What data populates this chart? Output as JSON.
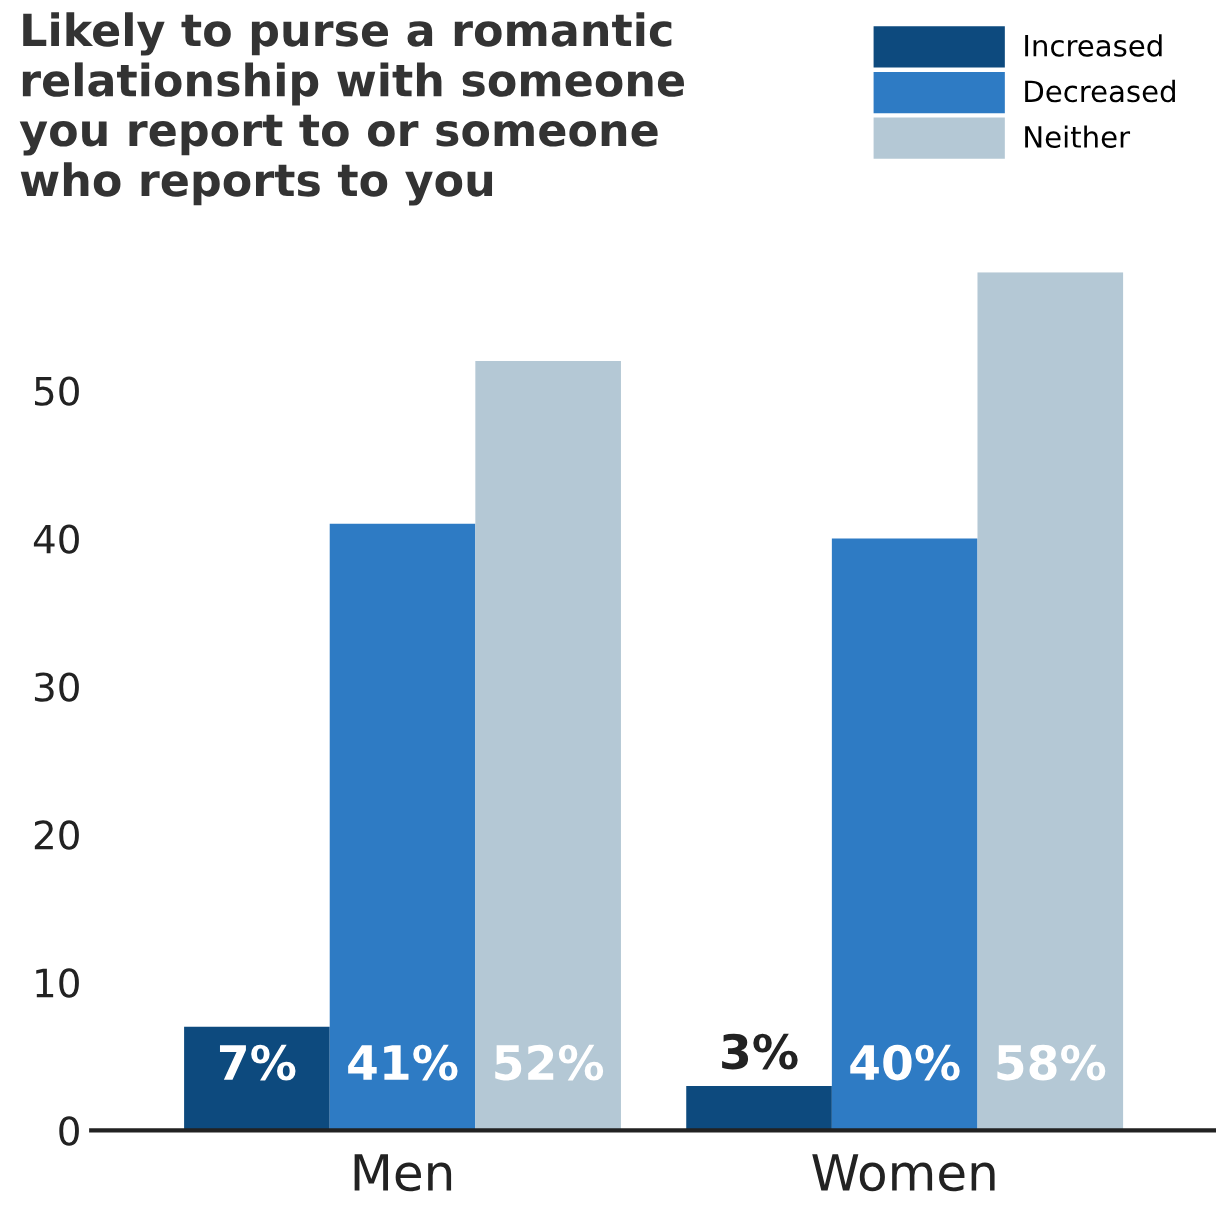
{
  "chart_data": {
    "type": "bar",
    "title": "Likely to purse a romantic relationship with someone you report to or someone who reports to you",
    "categories": [
      "Men",
      "Women"
    ],
    "series": [
      {
        "name": "Increased",
        "color": "#0d4a7e",
        "values": [
          7,
          3
        ],
        "value_labels": [
          "7%",
          "3%"
        ]
      },
      {
        "name": "Decreased",
        "color": "#2e7bc4",
        "values": [
          41,
          40
        ],
        "value_labels": [
          "41%",
          "40%"
        ]
      },
      {
        "name": "Neither",
        "color": "#b4c8d5",
        "values": [
          52,
          58
        ],
        "value_labels": [
          "52%",
          "58%"
        ]
      }
    ],
    "ylim": [
      0,
      58
    ],
    "yticks": [
      0,
      10,
      20,
      30,
      40,
      50
    ],
    "grid": false,
    "legend": "top right"
  }
}
